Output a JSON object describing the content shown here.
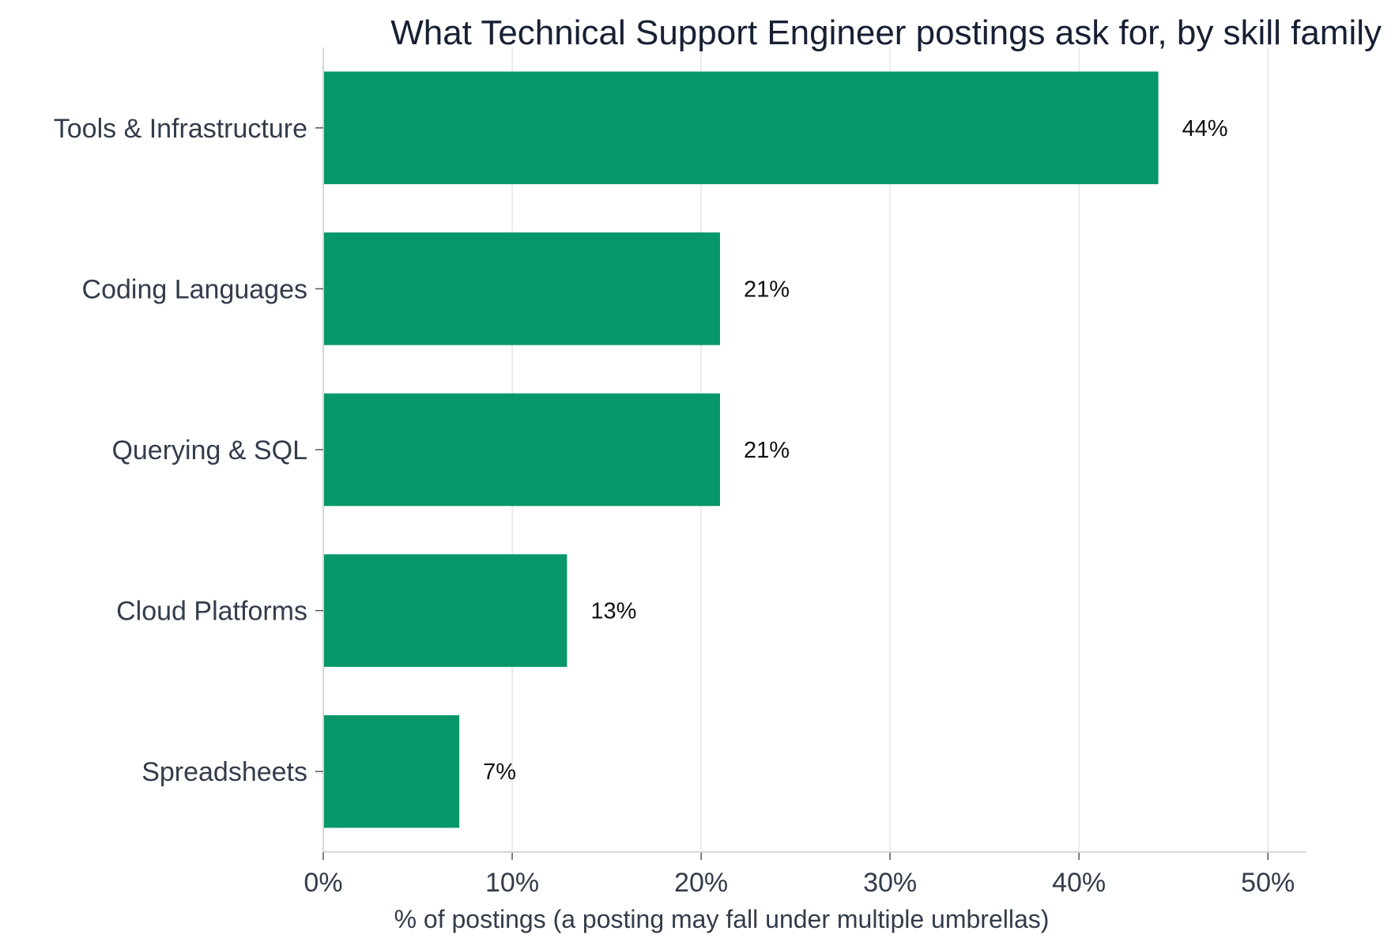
{
  "chart_data": {
    "type": "bar",
    "orientation": "horizontal",
    "title": "What Technical Support Engineer postings ask for, by skill family",
    "xlabel": "% of postings (a posting may fall under multiple umbrellas)",
    "ylabel": "",
    "categories": [
      "Tools & Infrastructure",
      "Coding Languages",
      "Querying & SQL",
      "Cloud Platforms",
      "Spreadsheets"
    ],
    "values": [
      44.2,
      21.0,
      21.0,
      12.9,
      7.2
    ],
    "value_labels": [
      "44%",
      "21%",
      "21%",
      "13%",
      "7%"
    ],
    "xlim": [
      0,
      52
    ],
    "xticks": [
      0,
      10,
      20,
      30,
      40,
      50
    ],
    "xtick_labels": [
      "0%",
      "10%",
      "20%",
      "30%",
      "40%",
      "50%"
    ],
    "grid": "vertical",
    "bar_color": "#07976b"
  }
}
